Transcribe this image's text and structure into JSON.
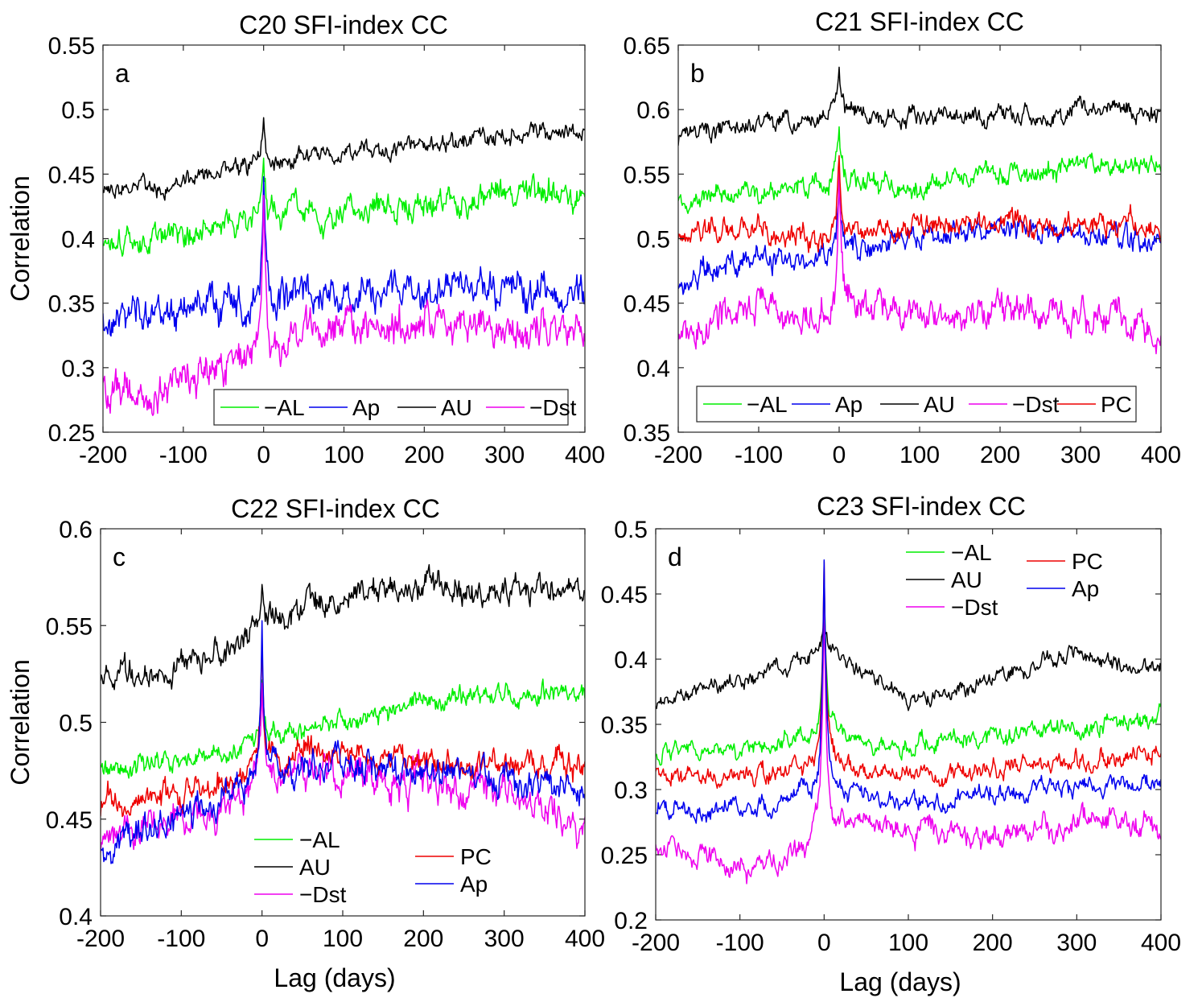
{
  "chart_data": [
    {
      "type": "line",
      "title": "C20 SFI-index CC",
      "panel_label": "a",
      "xlabel": "",
      "ylabel": "Correlation",
      "xlim": [
        -200,
        400
      ],
      "ylim": [
        0.25,
        0.55
      ],
      "xticks": [
        -200,
        -100,
        0,
        100,
        200,
        300,
        400
      ],
      "yticks": [
        0.25,
        0.3,
        0.35,
        0.4,
        0.45,
        0.5,
        0.55
      ],
      "xtick_labels": [
        "-200",
        "-100",
        "0",
        "100",
        "200",
        "300",
        "400"
      ],
      "ytick_labels": [
        "0.25",
        "0.3",
        "0.35",
        "0.4",
        "0.45",
        "0.5",
        "0.55"
      ],
      "legend_position": "bottom-right",
      "series": [
        {
          "name": "AL",
          "label": "−AL",
          "color": "#00ee00",
          "seed": 11,
          "start": 0.4,
          "end": 0.435,
          "noise": 0.012,
          "peak": 0.462,
          "x": [
            -200,
            -150,
            -100,
            -50,
            0,
            50,
            100,
            150,
            200,
            250,
            300,
            350,
            400
          ],
          "y": [
            0.4,
            0.395,
            0.405,
            0.41,
            0.415,
            0.42,
            0.42,
            0.425,
            0.425,
            0.43,
            0.432,
            0.435,
            0.435
          ]
        },
        {
          "name": "Ap",
          "label": "Ap",
          "color": "#0000ee",
          "seed": 23,
          "start": 0.34,
          "end": 0.355,
          "noise": 0.015,
          "peak": 0.44,
          "x": [
            -200,
            -150,
            -100,
            -50,
            0,
            50,
            100,
            150,
            200,
            250,
            300,
            350,
            400
          ],
          "y": [
            0.34,
            0.345,
            0.35,
            0.35,
            0.35,
            0.355,
            0.36,
            0.36,
            0.36,
            0.36,
            0.36,
            0.355,
            0.355
          ]
        },
        {
          "name": "AU",
          "label": "AU",
          "color": "#000000",
          "seed": 37,
          "start": 0.44,
          "end": 0.485,
          "noise": 0.008,
          "peak": 0.5,
          "x": [
            -200,
            -150,
            -100,
            -50,
            0,
            50,
            100,
            150,
            200,
            250,
            300,
            350,
            400
          ],
          "y": [
            0.44,
            0.44,
            0.445,
            0.45,
            0.46,
            0.462,
            0.465,
            0.47,
            0.472,
            0.475,
            0.478,
            0.482,
            0.485
          ]
        },
        {
          "name": "Dst",
          "label": "−Dst",
          "color": "#ee00ee",
          "seed": 49,
          "start": 0.285,
          "end": 0.33,
          "noise": 0.016,
          "peak": 0.44,
          "x": [
            -200,
            -150,
            -100,
            -50,
            0,
            50,
            100,
            150,
            200,
            250,
            300,
            350,
            400
          ],
          "y": [
            0.285,
            0.28,
            0.29,
            0.3,
            0.315,
            0.325,
            0.33,
            0.335,
            0.335,
            0.335,
            0.335,
            0.33,
            0.33
          ]
        }
      ]
    },
    {
      "type": "line",
      "title": "C21 SFI-index CC",
      "panel_label": "b",
      "xlabel": "",
      "ylabel": "",
      "xlim": [
        -200,
        400
      ],
      "ylim": [
        0.35,
        0.65
      ],
      "xticks": [
        -200,
        -100,
        0,
        100,
        200,
        300,
        400
      ],
      "yticks": [
        0.35,
        0.4,
        0.45,
        0.5,
        0.55,
        0.6,
        0.65
      ],
      "xtick_labels": [
        "-200",
        "-100",
        "0",
        "100",
        "200",
        "300",
        "400"
      ],
      "ytick_labels": [
        "0.35",
        "0.4",
        "0.45",
        "0.5",
        "0.55",
        "0.6",
        "0.65"
      ],
      "legend_position": "bottom",
      "series": [
        {
          "name": "AL",
          "label": "−AL",
          "color": "#00ee00",
          "seed": 61,
          "start": 0.53,
          "end": 0.555,
          "noise": 0.009,
          "peak": 0.585,
          "x": [
            -200,
            -150,
            -100,
            -50,
            0,
            50,
            100,
            150,
            200,
            250,
            300,
            350,
            400
          ],
          "y": [
            0.53,
            0.535,
            0.535,
            0.54,
            0.545,
            0.54,
            0.54,
            0.548,
            0.55,
            0.552,
            0.555,
            0.557,
            0.555
          ]
        },
        {
          "name": "Ap",
          "label": "Ap",
          "color": "#0000ee",
          "seed": 73,
          "start": 0.465,
          "end": 0.495,
          "noise": 0.01,
          "peak": 0.55,
          "x": [
            -200,
            -150,
            -100,
            -50,
            0,
            50,
            100,
            150,
            200,
            250,
            300,
            350,
            400
          ],
          "y": [
            0.465,
            0.48,
            0.485,
            0.485,
            0.49,
            0.495,
            0.5,
            0.505,
            0.51,
            0.505,
            0.505,
            0.5,
            0.495
          ]
        },
        {
          "name": "AU",
          "label": "AU",
          "color": "#000000",
          "seed": 83,
          "start": 0.575,
          "end": 0.595,
          "noise": 0.008,
          "peak": 0.636,
          "x": [
            -200,
            -150,
            -100,
            -50,
            0,
            50,
            100,
            150,
            200,
            250,
            300,
            350,
            400
          ],
          "y": [
            0.575,
            0.585,
            0.59,
            0.59,
            0.6,
            0.595,
            0.595,
            0.595,
            0.595,
            0.595,
            0.6,
            0.6,
            0.595
          ]
        },
        {
          "name": "Dst",
          "label": "−Dst",
          "color": "#ee00ee",
          "seed": 97,
          "start": 0.425,
          "end": 0.42,
          "noise": 0.014,
          "peak": 0.55,
          "x": [
            -200,
            -150,
            -100,
            -50,
            0,
            50,
            100,
            150,
            200,
            250,
            300,
            350,
            400
          ],
          "y": [
            0.425,
            0.44,
            0.445,
            0.44,
            0.45,
            0.445,
            0.44,
            0.44,
            0.445,
            0.44,
            0.44,
            0.44,
            0.42
          ]
        },
        {
          "name": "PC",
          "label": "PC",
          "color": "#ee0000",
          "seed": 101,
          "start": 0.5,
          "end": 0.51,
          "noise": 0.01,
          "peak": 0.572,
          "x": [
            -200,
            -150,
            -100,
            -50,
            0,
            50,
            100,
            150,
            200,
            250,
            300,
            350,
            400
          ],
          "y": [
            0.5,
            0.51,
            0.505,
            0.5,
            0.505,
            0.505,
            0.51,
            0.515,
            0.515,
            0.51,
            0.512,
            0.512,
            0.51
          ]
        }
      ]
    },
    {
      "type": "line",
      "title": "C22 SFI-index CC",
      "panel_label": "c",
      "xlabel": "Lag (days)",
      "ylabel": "Correlation",
      "xlim": [
        -200,
        400
      ],
      "ylim": [
        0.4,
        0.6
      ],
      "xticks": [
        -200,
        -100,
        0,
        100,
        200,
        300,
        400
      ],
      "yticks": [
        0.4,
        0.45,
        0.5,
        0.55,
        0.6
      ],
      "xtick_labels": [
        "-200",
        "-100",
        "0",
        "100",
        "200",
        "300",
        "400"
      ],
      "ytick_labels": [
        "0.4",
        "0.45",
        "0.5",
        "0.55",
        "0.6"
      ],
      "legend_position": "bottom",
      "series": [
        {
          "name": "AL",
          "label": "−AL",
          "color": "#00ee00",
          "seed": 113,
          "start": 0.475,
          "end": 0.515,
          "noise": 0.006,
          "peak": 0.515,
          "x": [
            -200,
            -150,
            -100,
            -50,
            0,
            50,
            100,
            150,
            200,
            250,
            300,
            350,
            400
          ],
          "y": [
            0.475,
            0.478,
            0.482,
            0.485,
            0.49,
            0.495,
            0.5,
            0.505,
            0.51,
            0.512,
            0.515,
            0.515,
            0.515
          ]
        },
        {
          "name": "AU",
          "label": "AU",
          "color": "#000000",
          "seed": 127,
          "start": 0.525,
          "end": 0.57,
          "noise": 0.008,
          "peak": 0.568,
          "x": [
            -200,
            -150,
            -100,
            -50,
            0,
            50,
            100,
            150,
            200,
            250,
            300,
            350,
            400
          ],
          "y": [
            0.525,
            0.525,
            0.53,
            0.535,
            0.55,
            0.56,
            0.565,
            0.568,
            0.57,
            0.57,
            0.568,
            0.57,
            0.57
          ]
        },
        {
          "name": "Dst",
          "label": "−Dst",
          "color": "#ee00ee",
          "seed": 131,
          "start": 0.435,
          "end": 0.445,
          "noise": 0.01,
          "peak": 0.525,
          "x": [
            -200,
            -150,
            -100,
            -50,
            0,
            50,
            100,
            150,
            200,
            250,
            300,
            350,
            400
          ],
          "y": [
            0.435,
            0.445,
            0.45,
            0.455,
            0.47,
            0.475,
            0.475,
            0.47,
            0.47,
            0.465,
            0.46,
            0.455,
            0.445
          ]
        },
        {
          "name": "PC",
          "label": "PC",
          "color": "#ee0000",
          "seed": 139,
          "start": 0.455,
          "end": 0.48,
          "noise": 0.008,
          "peak": 0.536,
          "x": [
            -200,
            -150,
            -100,
            -50,
            0,
            50,
            100,
            150,
            200,
            250,
            300,
            350,
            400
          ],
          "y": [
            0.455,
            0.46,
            0.465,
            0.47,
            0.48,
            0.485,
            0.485,
            0.48,
            0.48,
            0.478,
            0.478,
            0.478,
            0.48
          ]
        },
        {
          "name": "Ap",
          "label": "Ap",
          "color": "#0000ee",
          "seed": 149,
          "start": 0.435,
          "end": 0.465,
          "noise": 0.009,
          "peak": 0.555,
          "x": [
            -200,
            -150,
            -100,
            -50,
            0,
            50,
            100,
            150,
            200,
            250,
            300,
            350,
            400
          ],
          "y": [
            0.435,
            0.445,
            0.45,
            0.46,
            0.475,
            0.48,
            0.48,
            0.475,
            0.475,
            0.472,
            0.47,
            0.468,
            0.465
          ]
        }
      ]
    },
    {
      "type": "line",
      "title": "C23 SFI-index CC",
      "panel_label": "d",
      "xlabel": "Lag (days)",
      "ylabel": "",
      "xlim": [
        -200,
        400
      ],
      "ylim": [
        0.2,
        0.5
      ],
      "xticks": [
        -200,
        -100,
        0,
        100,
        200,
        300,
        400
      ],
      "yticks": [
        0.2,
        0.25,
        0.3,
        0.35,
        0.4,
        0.45,
        0.5
      ],
      "xtick_labels": [
        "-200",
        "-100",
        "0",
        "100",
        "200",
        "300",
        "400"
      ],
      "ytick_labels": [
        "0.2",
        "0.25",
        "0.3",
        "0.35",
        "0.4",
        "0.45",
        "0.5"
      ],
      "legend_position": "top",
      "series": [
        {
          "name": "AL",
          "label": "−AL",
          "color": "#00ee00",
          "seed": 151,
          "start": 0.33,
          "end": 0.355,
          "noise": 0.008,
          "peak": 0.455,
          "x": [
            -200,
            -150,
            -100,
            -50,
            0,
            50,
            100,
            150,
            200,
            250,
            300,
            350,
            400
          ],
          "y": [
            0.33,
            0.33,
            0.33,
            0.335,
            0.345,
            0.335,
            0.335,
            0.338,
            0.34,
            0.345,
            0.348,
            0.35,
            0.355
          ]
        },
        {
          "name": "AU",
          "label": "AU",
          "color": "#000000",
          "seed": 157,
          "start": 0.365,
          "end": 0.39,
          "noise": 0.007,
          "peak": 0.43,
          "x": [
            -200,
            -150,
            -100,
            -50,
            0,
            50,
            100,
            150,
            200,
            250,
            300,
            350,
            400
          ],
          "y": [
            0.365,
            0.375,
            0.385,
            0.395,
            0.41,
            0.39,
            0.37,
            0.375,
            0.385,
            0.395,
            0.405,
            0.395,
            0.39
          ]
        },
        {
          "name": "Dst",
          "label": "−Dst",
          "color": "#ee00ee",
          "seed": 163,
          "start": 0.255,
          "end": 0.27,
          "noise": 0.01,
          "peak": 0.45,
          "x": [
            -200,
            -150,
            -100,
            -50,
            0,
            50,
            100,
            150,
            200,
            250,
            300,
            350,
            400
          ],
          "y": [
            0.255,
            0.25,
            0.24,
            0.245,
            0.28,
            0.275,
            0.27,
            0.265,
            0.265,
            0.27,
            0.275,
            0.275,
            0.27
          ]
        },
        {
          "name": "PC",
          "label": "PC",
          "color": "#ee0000",
          "seed": 167,
          "start": 0.31,
          "end": 0.33,
          "noise": 0.008,
          "peak": 0.465,
          "x": [
            -200,
            -150,
            -100,
            -50,
            0,
            50,
            100,
            150,
            200,
            250,
            300,
            350,
            400
          ],
          "y": [
            0.31,
            0.31,
            0.31,
            0.312,
            0.325,
            0.315,
            0.31,
            0.312,
            0.315,
            0.318,
            0.322,
            0.325,
            0.33
          ]
        },
        {
          "name": "Ap",
          "label": "Ap",
          "color": "#0000ee",
          "seed": 173,
          "start": 0.285,
          "end": 0.305,
          "noise": 0.008,
          "peak": 0.483,
          "x": [
            -200,
            -150,
            -100,
            -50,
            0,
            50,
            100,
            150,
            200,
            250,
            300,
            350,
            400
          ],
          "y": [
            0.285,
            0.285,
            0.285,
            0.29,
            0.305,
            0.295,
            0.29,
            0.295,
            0.298,
            0.3,
            0.302,
            0.305,
            0.305
          ]
        }
      ]
    }
  ]
}
